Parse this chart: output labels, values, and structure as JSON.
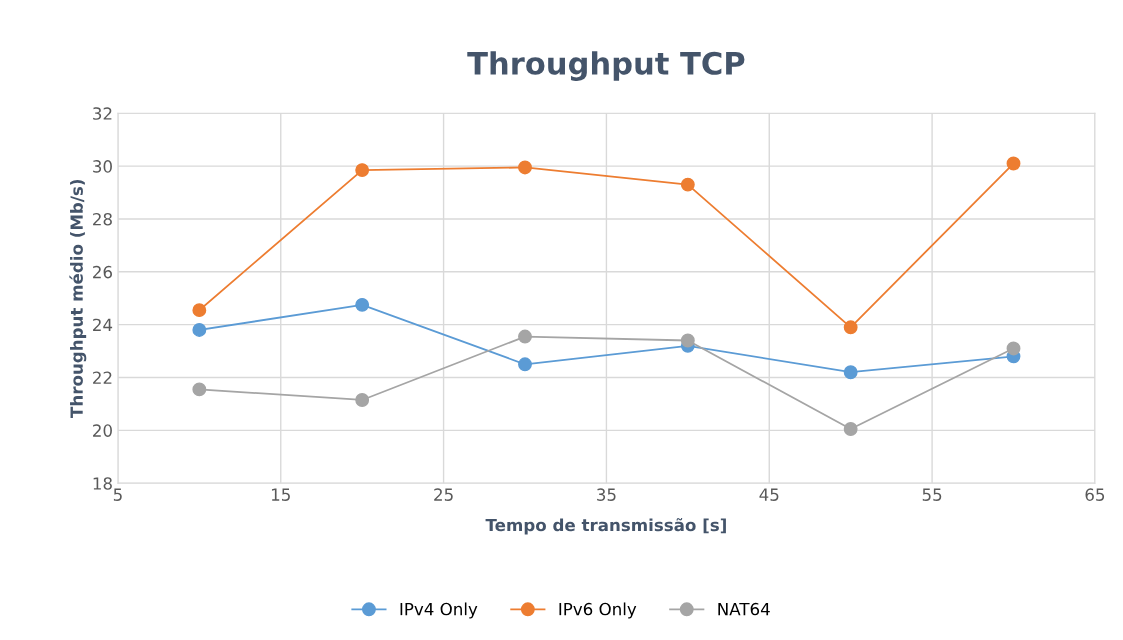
{
  "chart_data": {
    "type": "line",
    "title": "Throughput TCP",
    "xlabel": "Tempo de transmissão [s]",
    "ylabel": "Throughput médio (Mb/s)",
    "x": [
      10,
      20,
      30,
      40,
      50,
      60
    ],
    "series": [
      {
        "name": "IPv4 Only",
        "color": "#5b9bd5",
        "values": [
          23.8,
          24.75,
          22.5,
          23.2,
          22.2,
          22.8
        ]
      },
      {
        "name": "IPv6 Only",
        "color": "#ed7d31",
        "values": [
          24.55,
          29.85,
          29.95,
          29.3,
          23.9,
          30.1
        ]
      },
      {
        "name": "NAT64",
        "color": "#a5a5a5",
        "values": [
          21.55,
          21.15,
          23.55,
          23.4,
          20.05,
          23.1
        ]
      }
    ],
    "xlim": [
      5,
      65
    ],
    "xticks": [
      5,
      15,
      25,
      35,
      45,
      55,
      65
    ],
    "ylim": [
      18,
      32
    ],
    "yticks": [
      18,
      20,
      22,
      24,
      26,
      28,
      30,
      32
    ],
    "grid": true,
    "legend": "bottom",
    "marker": "circle",
    "line_style": "solid"
  }
}
